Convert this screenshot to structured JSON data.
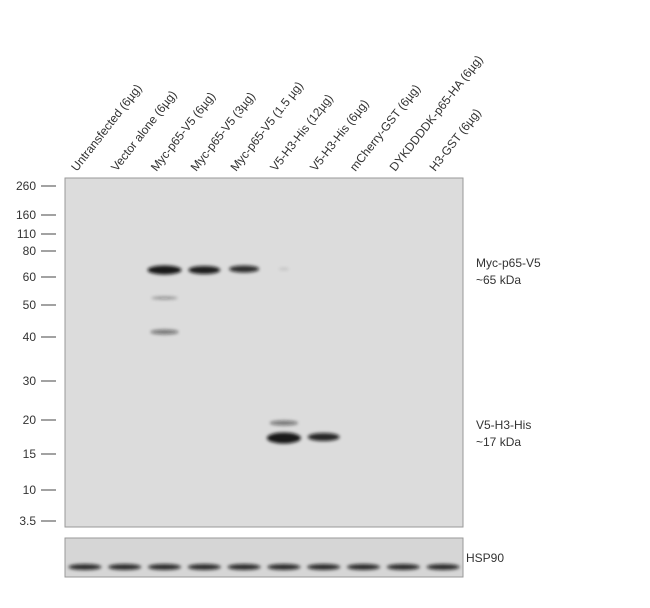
{
  "lanes": [
    "Untransfected (6µg)",
    "Vector alone (6µg)",
    "Myc-p65-V5 (6µg)",
    "Myc-p65-V5 (3µg)",
    "Myc-p65-V5 (1.5 µg)",
    "V5-H3-His (12µg)",
    "V5-H3-His (6µg)",
    "mCherry-GST (6µg)",
    "DYKDDDDK-p65-HA (6µg)",
    "H3-GST (6µg)"
  ],
  "markers": [
    "260",
    "160",
    "110",
    "80",
    "60",
    "50",
    "40",
    "30",
    "20",
    "15",
    "10",
    "3.5"
  ],
  "annotations": [
    {
      "label": "Myc-p65-V5",
      "size": "~65 kDa"
    },
    {
      "label": "V5-H3-His",
      "size": "~17 kDa"
    }
  ],
  "loading_control": "HSP90"
}
